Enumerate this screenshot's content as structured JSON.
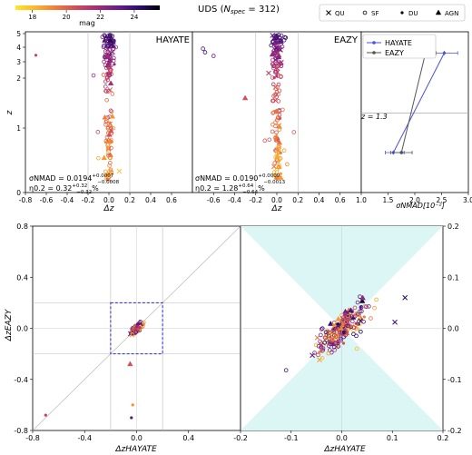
{
  "figure": {
    "title": "UDS (N_spec = 312)",
    "title_main": "UDS (",
    "title_N": "N",
    "title_sub": "spec",
    "title_rest": " = 312)",
    "colorbar": {
      "label": "mag",
      "ticks": [
        "18",
        "20",
        "22",
        "24"
      ],
      "range": [
        17,
        25.5
      ],
      "colors": [
        "#fde725",
        "#fbb42d",
        "#ee7a3b",
        "#d04a5c",
        "#a22c76",
        "#6b1d86",
        "#2d0e6e",
        "#000004"
      ]
    },
    "legend_types": [
      {
        "label": "QU",
        "marker": "x"
      },
      {
        "label": "SF",
        "marker": "star"
      },
      {
        "label": "DU",
        "marker": "dot"
      },
      {
        "label": "AGN",
        "marker": "triangle"
      }
    ]
  },
  "chart_data": [
    {
      "id": "hayate_scatter",
      "type": "scatter",
      "panel_label": "HAYATE",
      "xlabel": "Δz",
      "ylabel": "z",
      "xlim": [
        -0.8,
        0.8
      ],
      "xticks": [
        "-0.8",
        "-0.6",
        "-0.4",
        "-0.2",
        "0.0",
        "0.2",
        "0.4",
        "0.6"
      ],
      "yticks": [
        "0",
        "1",
        "2",
        "3",
        "4",
        "5"
      ],
      "ylim": [
        0,
        5
      ],
      "yscale": "arcsinh",
      "stats": [
        "σNMAD = 0.0194 (+0.0007/−0.0008)",
        "η0.2 = 0.32 (+0.32/−0.32)%"
      ],
      "stat1_text": "σNMAD = 0.0194",
      "stat1_sup": "+0.0007",
      "stat1_sub": "−0.0008",
      "stat2_text": "η0.2 = 0.32",
      "stat2_sup": "+0.32",
      "stat2_sub": "−0.32",
      "stat2_suffix": "%",
      "outliers": [
        {
          "x": -0.7,
          "y": 3.45,
          "mag": 21.0,
          "marker": "dot"
        }
      ]
    },
    {
      "id": "eazy_scatter",
      "type": "scatter",
      "panel_label": "EAZY",
      "xlabel": "Δz",
      "xlim": [
        -0.8,
        0.8
      ],
      "xticks": [
        "-0.6",
        "-0.4",
        "-0.2",
        "0.0",
        "0.2",
        "0.4",
        "0.6"
      ],
      "ylim": [
        0,
        5
      ],
      "yscale": "arcsinh",
      "stats": [
        "σNMAD = 0.0190 (+0.0009/−0.0013)",
        "η0.2 = 1.28 (+0.64/−0.64)%"
      ],
      "stat1_text": "σNMAD = 0.0190",
      "stat1_sup": "+0.0009",
      "stat1_sub": "−0.0013",
      "stat2_text": "η0.2 = 1.28",
      "stat2_sup": "+0.64",
      "stat2_sub": "−0.64",
      "stat2_suffix": "%",
      "outliers": [
        {
          "x": -0.7,
          "y": 3.9,
          "mag": 23.5,
          "marker": "star"
        },
        {
          "x": -0.68,
          "y": 3.65,
          "mag": 24.0,
          "marker": "star"
        },
        {
          "x": -0.6,
          "y": 3.4,
          "mag": 23.0,
          "marker": "star"
        },
        {
          "x": -0.3,
          "y": 1.6,
          "mag": 20.5,
          "marker": "triangle"
        }
      ]
    },
    {
      "id": "sigma_vs_z",
      "type": "line",
      "xlabel": "σNMAD[10⁻²]",
      "xlim": [
        1.0,
        3.0
      ],
      "xticks": [
        "1.0",
        "1.5",
        "2.0",
        "2.5",
        "3.0"
      ],
      "ylim": [
        0,
        5
      ],
      "annotation": "z = 1.3",
      "annotation_value": 1.3,
      "series": [
        {
          "name": "HAYATE",
          "color": "#4a50e0",
          "points": [
            {
              "x": 1.6,
              "y": 0.62,
              "xerr": [
                0.15,
                0.2
              ]
            },
            {
              "x": 2.55,
              "y": 3.6,
              "xerr": [
                0.3,
                0.25
              ]
            }
          ]
        },
        {
          "name": "EAZY",
          "color": "#555555",
          "points": [
            {
              "x": 1.75,
              "y": 0.62,
              "xerr": [
                0.2,
                0.2
              ]
            },
            {
              "x": 2.2,
              "y": 3.6,
              "xerr": [
                0.2,
                0.2
              ]
            }
          ]
        }
      ]
    },
    {
      "id": "dz_comparison",
      "type": "scatter",
      "xlabel": "ΔzHAYATE",
      "ylabel": "ΔzEAZY",
      "xlim": [
        -0.8,
        0.8
      ],
      "ylim": [
        -0.8,
        0.8
      ],
      "xticks": [
        "-0.8",
        "-0.4",
        "0.0",
        "0.4"
      ],
      "yticks": [
        "-0.8",
        "-0.4",
        "0.0",
        "0.4",
        "0.8"
      ],
      "guides": [
        -0.2,
        0.2
      ],
      "zoom_box": [
        -0.2,
        0.2,
        -0.2,
        0.2
      ],
      "outliers": [
        {
          "x": -0.7,
          "y": -0.68,
          "mag": 21.0,
          "marker": "dot"
        },
        {
          "x": -0.04,
          "y": -0.7,
          "mag": 23.5,
          "marker": "dot"
        },
        {
          "x": -0.03,
          "y": -0.6,
          "mag": 19.0,
          "marker": "dot"
        },
        {
          "x": -0.05,
          "y": -0.28,
          "mag": 20.5,
          "marker": "triangle"
        }
      ]
    },
    {
      "id": "dz_zoom",
      "type": "scatter",
      "xlabel": "ΔzHAYATE",
      "xlim": [
        -0.2,
        0.2
      ],
      "ylim": [
        -0.2,
        0.2
      ],
      "xticks": [
        "-0.2",
        "-0.1",
        "0.0",
        "0.1",
        "0.2"
      ],
      "yticks": [
        "-0.2",
        "-0.1",
        "0.0",
        "0.1",
        "0.2"
      ],
      "outliers": [
        {
          "x": 0.125,
          "y": 0.06,
          "mag": 24.5,
          "marker": "x"
        },
        {
          "x": 0.105,
          "y": 0.012,
          "mag": 24.0,
          "marker": "x"
        },
        {
          "x": -0.11,
          "y": -0.082,
          "mag": 24.0,
          "marker": "star"
        },
        {
          "x": 0.03,
          "y": -0.04,
          "mag": 18.0,
          "marker": "star"
        }
      ]
    }
  ]
}
